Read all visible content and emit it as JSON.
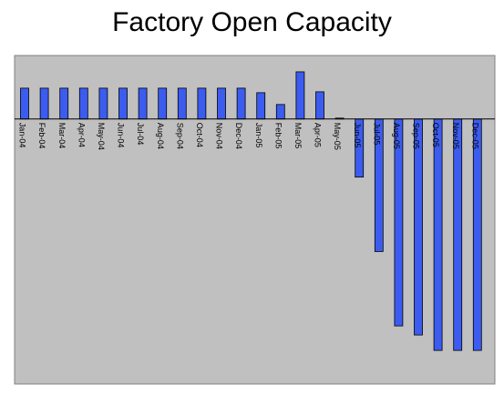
{
  "chart_data": {
    "type": "bar",
    "title": "Factory Open Capacity",
    "xlabel": "",
    "ylabel": "",
    "grid": false,
    "legend": "none",
    "categories": [
      "Jan-04",
      "Feb-04",
      "Mar-04",
      "Apr-04",
      "May-04",
      "Jun-04",
      "Jul-04",
      "Aug-04",
      "Sep-04",
      "Oct-04",
      "Nov-04",
      "Dec-04",
      "Jan-05",
      "Feb-05",
      "Mar-05",
      "Apr-05",
      "May-05",
      "Jun-05",
      "Jul-05",
      "Aug-05",
      "Sep-05",
      "Oct-05",
      "Nov-05",
      "Dec-05"
    ],
    "values": [
      34,
      34,
      34,
      34,
      34,
      34,
      34,
      34,
      34,
      34,
      34,
      34,
      29,
      16,
      52,
      30,
      1,
      -64,
      -146,
      -228,
      -238,
      -255,
      -255,
      -255
    ],
    "ylim": [
      -292,
      70
    ],
    "colors": {
      "bar_fill": "#3c5cf0",
      "bar_stroke": "#000000",
      "plot_background": "#c0c0c0",
      "page_background": "#ffffff"
    }
  }
}
